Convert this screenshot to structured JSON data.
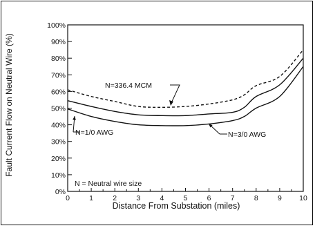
{
  "chart_data": {
    "type": "line",
    "xlabel": "Distance From Substation  (miles)",
    "ylabel": "Fault Current Flow on Neutral Wire (%)",
    "xlim": [
      0,
      10
    ],
    "ylim": [
      0,
      100
    ],
    "x_ticks": [
      "0",
      "1",
      "2",
      "3",
      "4",
      "5",
      "6",
      "7",
      "8",
      "9",
      "10"
    ],
    "y_ticks": [
      "0%",
      "10%",
      "20%",
      "30%",
      "40%",
      "50%",
      "60%",
      "70%",
      "80%",
      "90%",
      "100%"
    ],
    "grid": false,
    "x": [
      0,
      1,
      2,
      3,
      4,
      5,
      6,
      7,
      7.5,
      8,
      9,
      10
    ],
    "series": [
      {
        "name": "N=336.4 MCM",
        "style": "dashed",
        "values": [
          61,
          57,
          54,
          51,
          50.5,
          51,
          52.5,
          55,
          58,
          63.5,
          69,
          85
        ]
      },
      {
        "name": "N=1/0 AWG",
        "style": "solid",
        "values": [
          54.5,
          51,
          48,
          46,
          45.5,
          45.5,
          46.5,
          47.5,
          50.5,
          57,
          64,
          80
        ]
      },
      {
        "name": "N=3/0 AWG",
        "style": "solid",
        "values": [
          49.5,
          45,
          42,
          40,
          39.5,
          39.5,
          40.5,
          42.5,
          45,
          50,
          57,
          75
        ]
      }
    ],
    "annotation": "N = Neutral wire size"
  },
  "colors": {
    "line": "#111111",
    "background": "#ffffff"
  }
}
